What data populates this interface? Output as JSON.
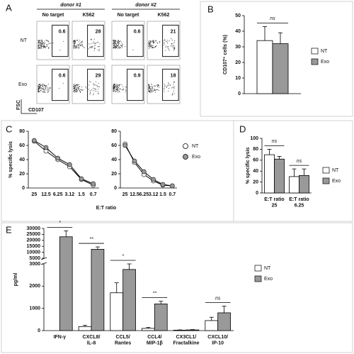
{
  "flow_cytometry": {
    "panel": "A",
    "donors": [
      "donor #1",
      "donor #2"
    ],
    "conditions": [
      "No target",
      "K562"
    ],
    "rows": [
      "NT",
      "Exo"
    ],
    "values": [
      [
        0.6,
        28,
        0.6,
        21
      ],
      [
        0.6,
        29,
        0.9,
        18
      ]
    ],
    "xlabel": "CD107",
    "ylabel": "FSC"
  },
  "chart_data": [
    {
      "type": "bar",
      "panel": "B",
      "ylabel": "CD107⁺ cells (%)",
      "ylim": [
        0,
        50
      ],
      "yticks": [
        0,
        10,
        20,
        30,
        40,
        50
      ],
      "series": [
        {
          "name": "NT",
          "color": "#ffffff",
          "values": [
            34
          ],
          "errors": [
            9
          ]
        },
        {
          "name": "Exo",
          "color": "#999999",
          "values": [
            32
          ],
          "errors": [
            7
          ]
        }
      ],
      "significance": [
        "ns"
      ]
    },
    {
      "type": "line",
      "panel": "C",
      "ylabel": "% specific lysis",
      "xlabel": "E:T ratio",
      "categories": [
        "25",
        "12.5",
        "6.25",
        "3.12",
        "1.5",
        "0.7"
      ],
      "ylim": [
        0,
        80
      ],
      "yticks": [
        0,
        20,
        40,
        60,
        80
      ],
      "series": [
        {
          "name": "NT",
          "color": "#ffffff",
          "values": [
            [
              66,
              52,
              40,
              30,
              12,
              4
            ],
            [
              62,
              36,
              19,
              10,
              4,
              3
            ]
          ]
        },
        {
          "name": "Exo",
          "color": "#999999",
          "values": [
            [
              67,
              57,
              42,
              33,
              13,
              6
            ],
            [
              60,
              38,
              23,
              12,
              5,
              3
            ]
          ]
        }
      ]
    },
    {
      "type": "bar",
      "panel": "D",
      "ylabel": "% specific lysis",
      "categories": [
        "E:T ratio 25",
        "E:T ratio 6.25"
      ],
      "ylim": [
        0,
        100
      ],
      "yticks": [
        0,
        20,
        40,
        60,
        80,
        100
      ],
      "series": [
        {
          "name": "NT",
          "color": "#ffffff",
          "values": [
            70,
            30
          ],
          "errors": [
            10,
            14
          ]
        },
        {
          "name": "Exo",
          "color": "#999999",
          "values": [
            62,
            32
          ],
          "errors": [
            5,
            12
          ]
        }
      ],
      "significance": [
        "ns",
        "ns"
      ]
    },
    {
      "type": "bar",
      "panel": "E",
      "ylabel": "pg/ml",
      "categories": [
        "IFN-γ",
        "CXCL8/ IL-8",
        "CCL5/ Rantes",
        "CCL4/ MIP-1β",
        "CX3CL1/ Fractalkine",
        "CXCL10/ IP-10"
      ],
      "ylim": [
        0,
        30000
      ],
      "axis_break": [
        3000,
        5000
      ],
      "yticks": [
        0,
        1000,
        2000,
        3000,
        5000,
        10000,
        15000,
        20000,
        25000,
        30000
      ],
      "series": [
        {
          "name": "NT",
          "color": "#ffffff",
          "values": [
            0,
            180,
            1700,
            100,
            20,
            450
          ],
          "errors": [
            null,
            60,
            450,
            40,
            10,
            150
          ]
        },
        {
          "name": "Exo",
          "color": "#999999",
          "values": [
            23000,
            12500,
            2750,
            1200,
            30,
            800
          ],
          "errors": [
            5000,
            2000,
            250,
            120,
            15,
            300
          ]
        }
      ],
      "significance": [
        "*",
        "**",
        "*",
        "**",
        null,
        "ns"
      ]
    }
  ]
}
